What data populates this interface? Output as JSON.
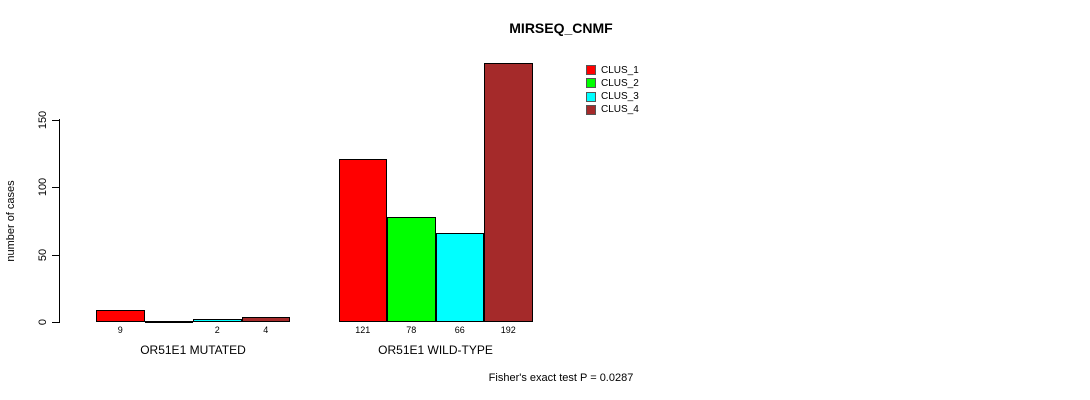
{
  "chart_data": {
    "type": "bar",
    "title": "MIRSEQ_CNMF",
    "ylabel": "number of cases",
    "xlabel": "",
    "ylim": [
      0,
      150
    ],
    "yticks": [
      "0",
      "50",
      "100",
      "150"
    ],
    "grid": false,
    "legend_position": "top-right",
    "categories": [
      "OR51E1 MUTATED",
      "OR51E1 WILD-TYPE"
    ],
    "series": [
      {
        "name": "CLUS_1",
        "color": "#FF0000",
        "values": [
          9,
          121
        ]
      },
      {
        "name": "CLUS_2",
        "color": "#00FF00",
        "values": [
          0,
          78
        ]
      },
      {
        "name": "CLUS_3",
        "color": "#00FFFF",
        "values": [
          2,
          66
        ]
      },
      {
        "name": "CLUS_4",
        "color": "#A52A2A",
        "values": [
          4,
          192
        ]
      }
    ],
    "bar_value_labels": [
      [
        "9",
        "",
        "2",
        "4"
      ],
      [
        "121",
        "78",
        "66",
        "192"
      ]
    ],
    "annotation": "Fisher's exact test P = 0.0287",
    "text_color": "#000000",
    "background_color": "#FFFFFF"
  }
}
